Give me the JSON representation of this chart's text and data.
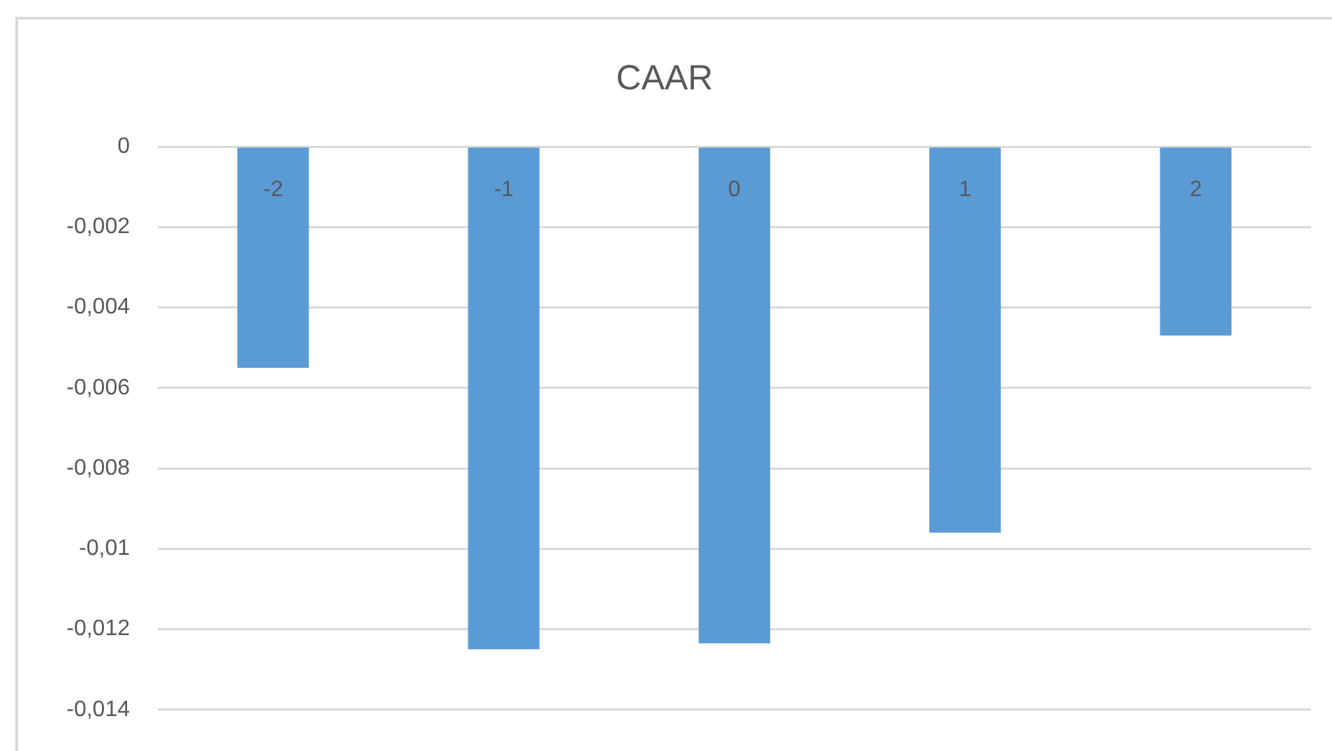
{
  "chart_data": {
    "type": "bar",
    "title": "CAAR",
    "categories": [
      "-2",
      "-1",
      "0",
      "1",
      "2"
    ],
    "values": [
      -0.0055,
      -0.0125,
      -0.01235,
      -0.0096,
      -0.0047
    ],
    "color": "#5b9bd5",
    "ylim": [
      -0.014,
      0
    ],
    "yticks": [
      {
        "value": -0.014,
        "label": "-0,014"
      },
      {
        "value": -0.012,
        "label": "-0,012"
      },
      {
        "value": -0.01,
        "label": "-0,01"
      },
      {
        "value": -0.008,
        "label": "-0,008"
      },
      {
        "value": -0.006,
        "label": "-0,006"
      },
      {
        "value": -0.004,
        "label": "-0,004"
      },
      {
        "value": -0.002,
        "label": "-0,002"
      },
      {
        "value": 0,
        "label": "0"
      }
    ],
    "grid": "y",
    "legend": false
  }
}
